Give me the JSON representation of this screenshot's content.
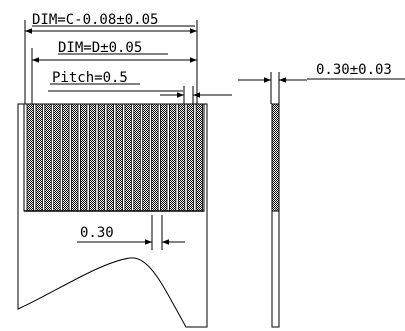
{
  "labels": {
    "dim_c": "DIM=C-0.08±0.05",
    "dim_d": "DIM=D±0.05",
    "pitch": "Pitch=0.5",
    "thickness": "0.30±0.03",
    "stiffener_gap": "0.30"
  },
  "colors": {
    "line": "#000000",
    "fill": "#ffffff",
    "hatch": "#000000"
  }
}
